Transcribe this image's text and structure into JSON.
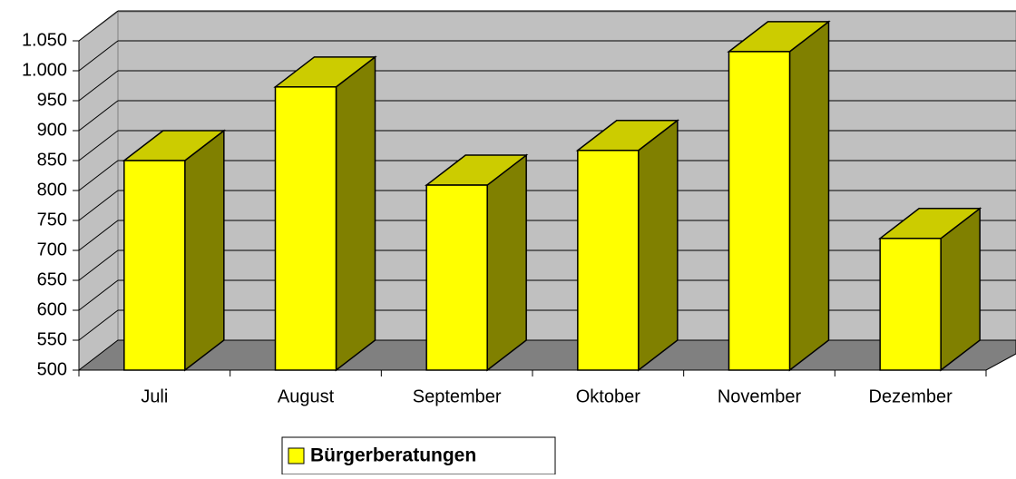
{
  "chart_data": {
    "type": "bar3d",
    "categories": [
      "Juli",
      "August",
      "September",
      "Oktober",
      "November",
      "Dezember"
    ],
    "series": [
      {
        "name": "Bürgerberatungen",
        "color": "#ffff00",
        "values": [
          850,
          973,
          809,
          867,
          1032,
          720
        ]
      }
    ],
    "ylim": [
      500,
      1050
    ],
    "yticks": [
      500,
      550,
      600,
      650,
      700,
      750,
      800,
      850,
      900,
      950,
      {
        "value": 1000,
        "label": "1.000"
      },
      {
        "value": 1050,
        "label": "1.050"
      }
    ],
    "grid": true,
    "legend": "bottom"
  }
}
